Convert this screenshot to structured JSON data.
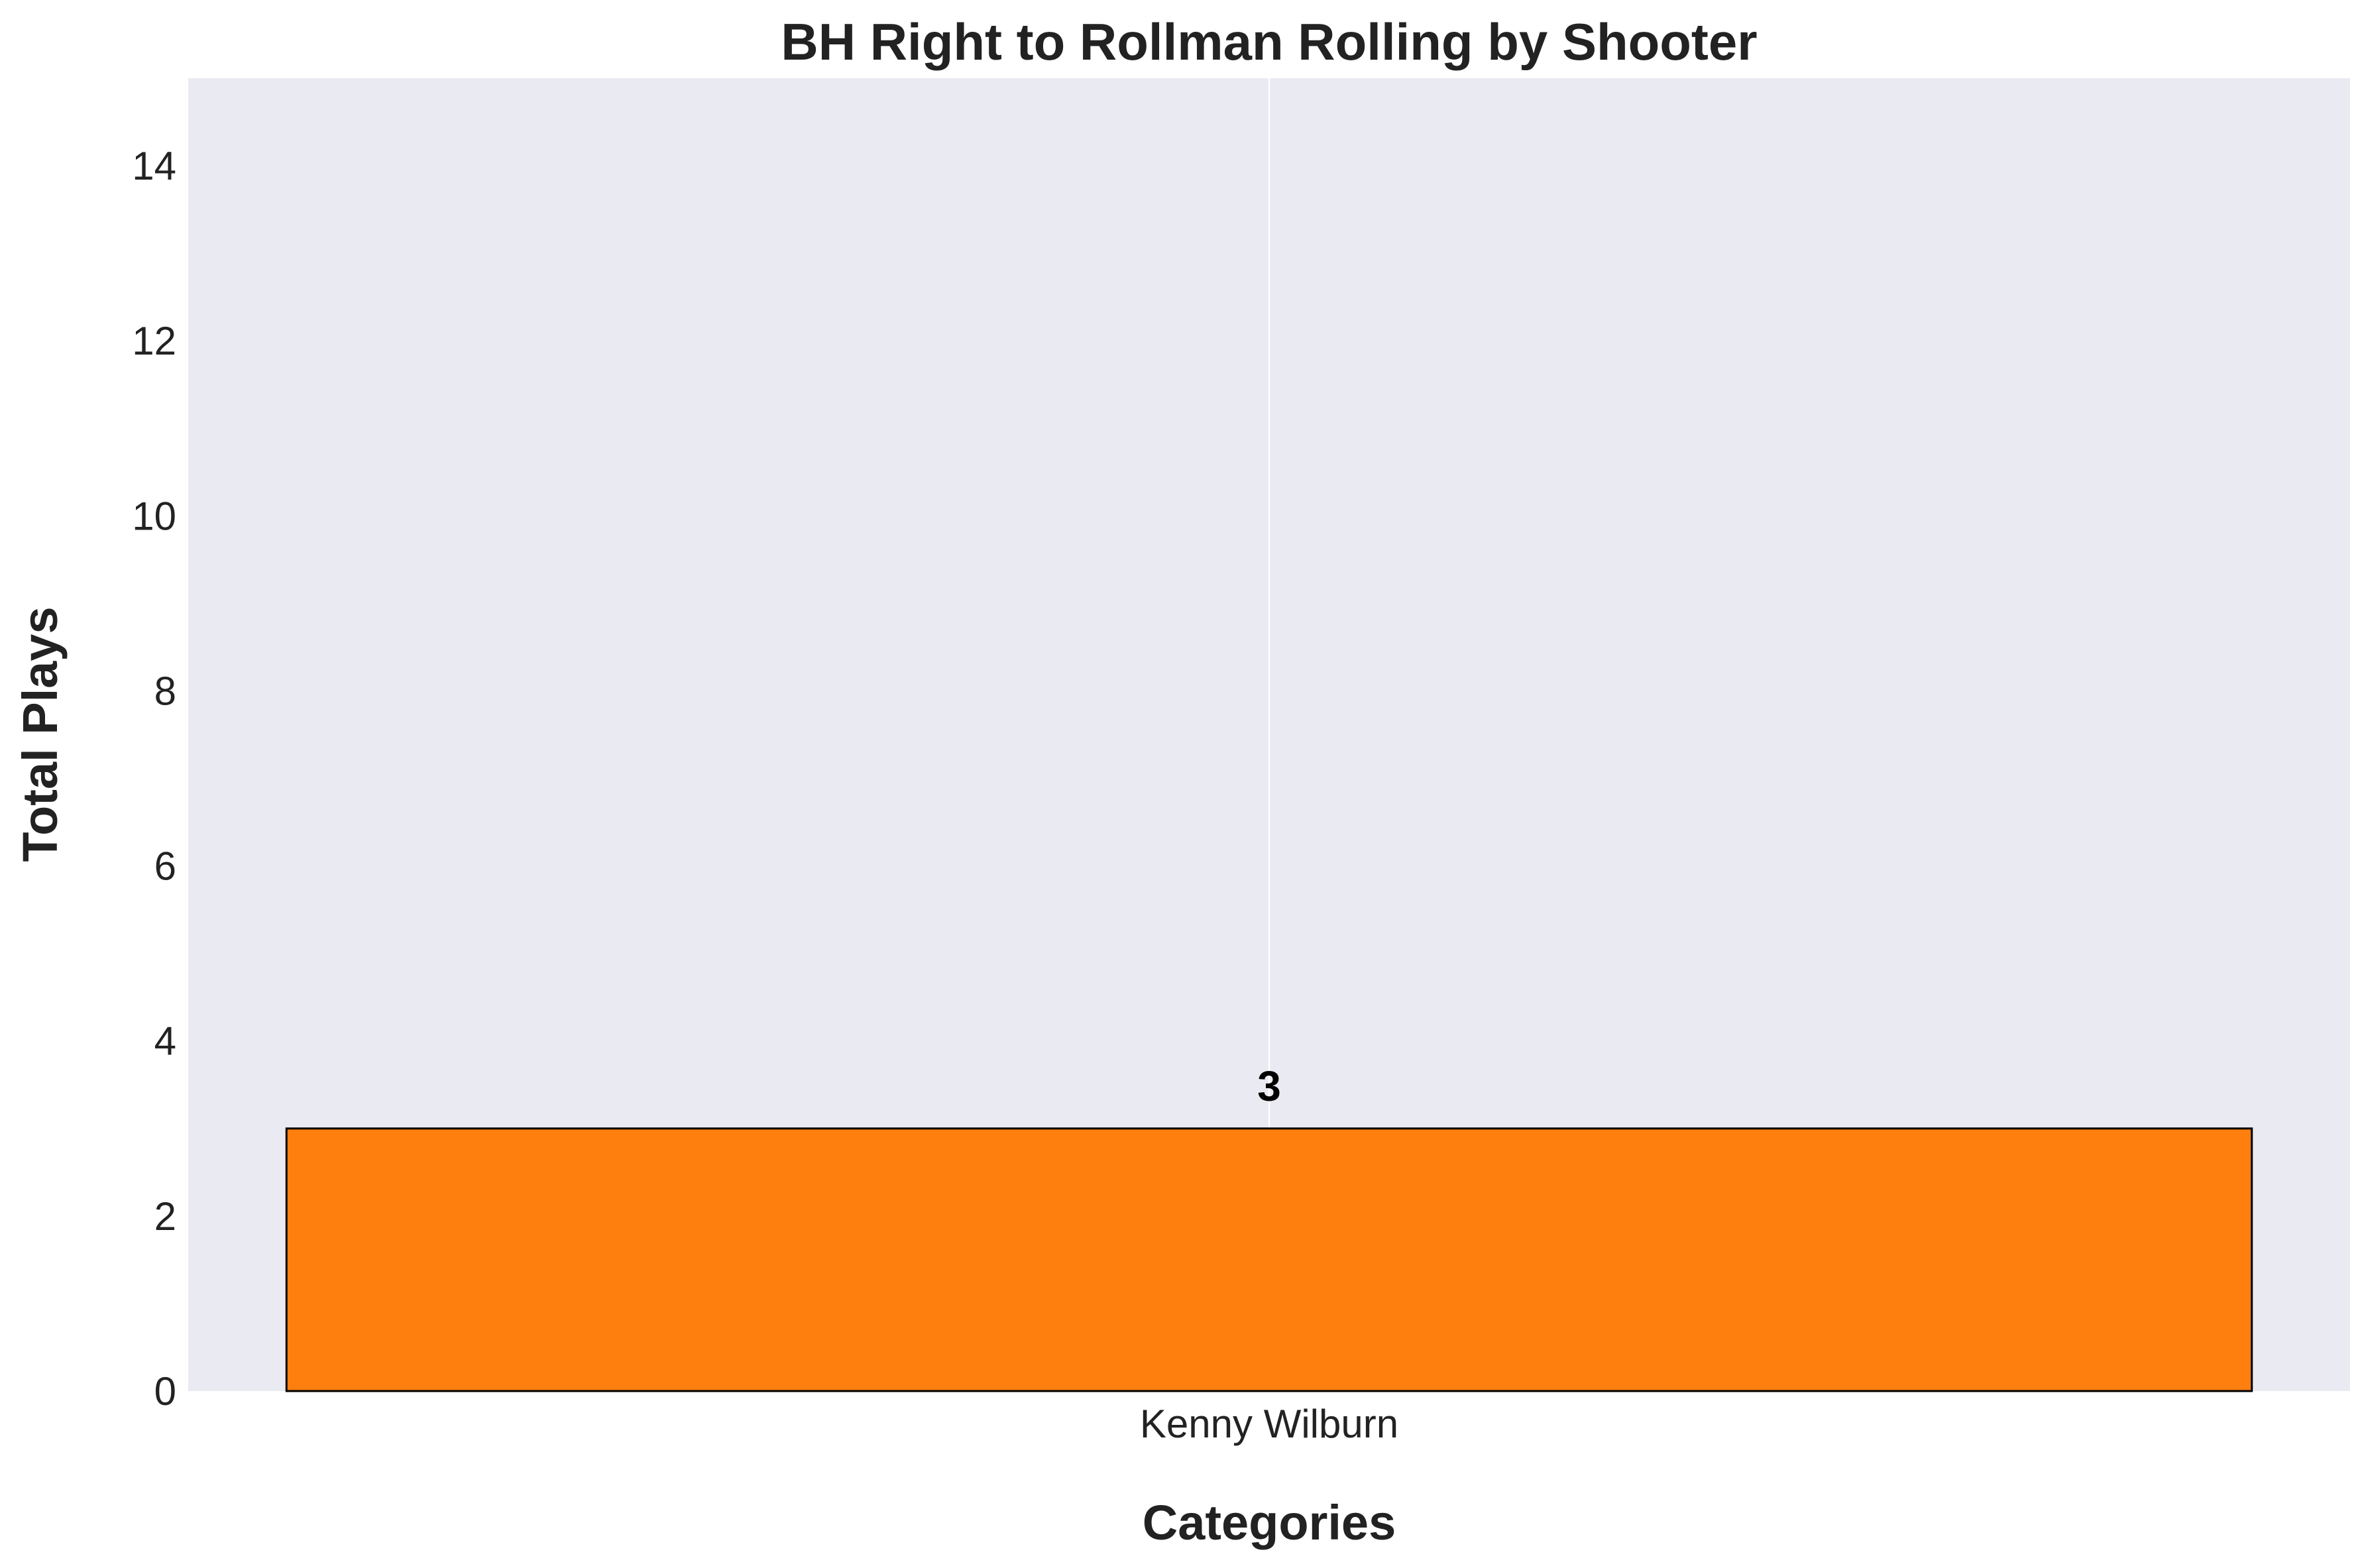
{
  "chart_data": {
    "type": "bar",
    "title": "BH Right to Rollman Rolling by Shooter",
    "xlabel": "Categories",
    "ylabel": "Total Plays",
    "categories": [
      "Kenny Wilburn"
    ],
    "values": [
      3
    ],
    "data_labels": [
      "3"
    ],
    "ylim": [
      0,
      15
    ],
    "yticks": [
      0,
      2,
      4,
      6,
      8,
      10,
      12,
      14
    ],
    "ytick_labels": [
      "0",
      "2",
      "4",
      "6",
      "8",
      "10",
      "12",
      "14"
    ],
    "grid": true,
    "legend": "none",
    "colors": {
      "bar": "#ff7f0e",
      "bar_edge": "#000000",
      "plot_background": "#eaeaf2",
      "grid": "#ffffff"
    }
  }
}
